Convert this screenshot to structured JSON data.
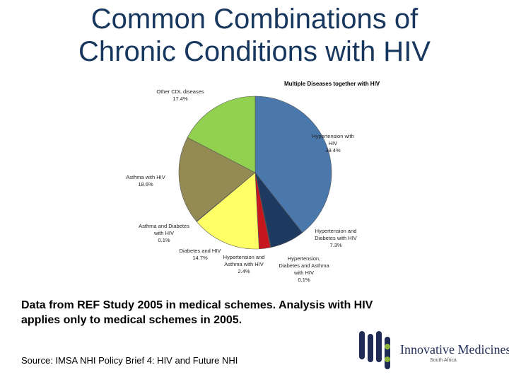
{
  "slide": {
    "title_line1": "Common Combinations of",
    "title_line2": "Chronic Conditions with HIV",
    "caption_line1": "Data from REF Study 2005 in medical schemes. Analysis with HIV",
    "caption_line2": "applies only to medical schemes in 2005.",
    "source": "Source: IMSA NHI Policy Brief 4: HIV and Future NHI"
  },
  "logo": {
    "name": "Innovative Medicines",
    "sub": "South Africa"
  },
  "chart_data": {
    "type": "pie",
    "title": "Multiple Diseases together with HIV",
    "slices": [
      {
        "lines": [
          "Hypertension with",
          "HIV",
          "39.4%"
        ],
        "value": 39.4,
        "color": "#4a78ad"
      },
      {
        "lines": [
          "Hypertension and",
          "Diabetes with HIV",
          "7.3%"
        ],
        "value": 7.3,
        "color": "#1f3a60"
      },
      {
        "lines": [
          "Hypertension,",
          "Diabetes and Asthma",
          "with HIV",
          "0.1%"
        ],
        "value": 0.1,
        "color": "#6b1c1c"
      },
      {
        "lines": [
          "Hypertension and",
          "Asthma with HIV",
          "2.4%"
        ],
        "value": 2.4,
        "color": "#c8161e"
      },
      {
        "lines": [
          "Diabetes and HIV",
          "14.7%"
        ],
        "value": 14.7,
        "color": "#ffff66"
      },
      {
        "lines": [
          "Asthma and Diabetes",
          "with HIV",
          "0.1%"
        ],
        "value": 0.1,
        "color": "#b7b7b7"
      },
      {
        "lines": [
          "Asthma with HIV",
          "18.6%"
        ],
        "value": 18.6,
        "color": "#948a54"
      },
      {
        "lines": [
          "Other CDL diseases",
          "17.4%"
        ],
        "value": 17.4,
        "color": "#92d050"
      }
    ]
  }
}
